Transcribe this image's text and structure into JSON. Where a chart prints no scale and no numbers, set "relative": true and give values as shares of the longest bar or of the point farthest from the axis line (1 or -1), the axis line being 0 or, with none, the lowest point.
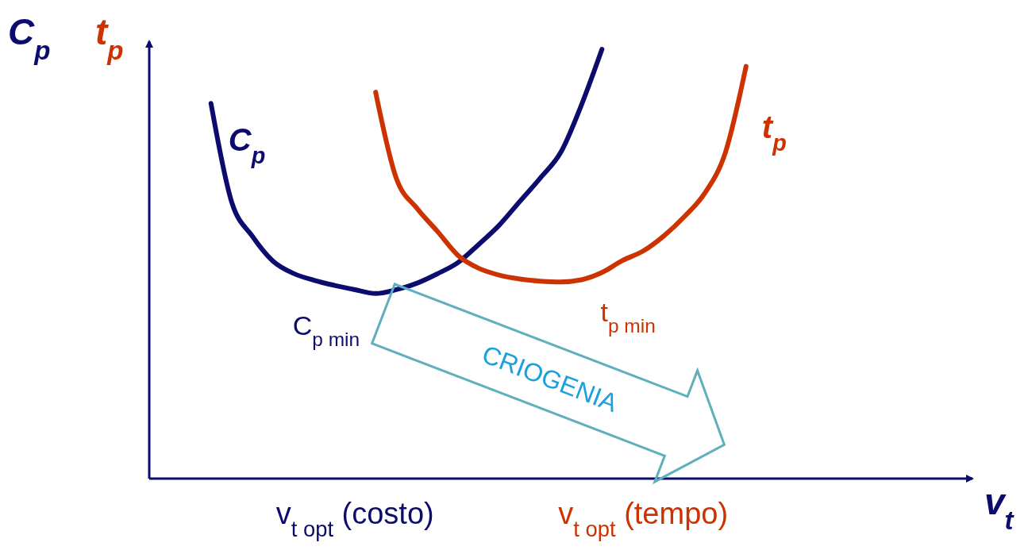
{
  "chart_data": {
    "type": "line",
    "relative": true,
    "xlabel": "v$_{t}$",
    "ylabel": "C$_{p}$",
    "y2label": "t$_{p}$",
    "categories": [
      null,
      null,
      null,
      null,
      null,
      null,
      null,
      null,
      null,
      null,
      "v$_{t opt}$ (costo)",
      null,
      null,
      null,
      null,
      null,
      null,
      null,
      null,
      null,
      null,
      null,
      null,
      null,
      "v$_{t opt}$ (tempo)",
      null,
      null,
      null,
      null,
      null,
      null,
      null,
      null,
      null,
      null,
      null,
      null,
      null,
      null,
      null,
      null
    ],
    "line_style": "solid",
    "annotations": [
      "C$_{p min}$",
      "t$_{p min}$",
      "CRIOGENIA"
    ],
    "series": [
      {
        "name": "C$_{p}$",
        "color": "#0c0c6e",
        "values": [
          null,
          null,
          null,
          0.874,
          0.645,
          0.565,
          0.507,
          0.478,
          0.462,
          0.45,
          0.44,
          0.431,
          0.44,
          0.455,
          0.477,
          0.503,
          0.545,
          0.59,
          0.645,
          0.7,
          0.76,
          0.87,
          1,
          null,
          null,
          null,
          null,
          null,
          null,
          null,
          null,
          null,
          null,
          null,
          null,
          null,
          null,
          null,
          null,
          null,
          null
        ]
      },
      {
        "name": "t$_{p}$",
        "color": "#cc3300",
        "values": [
          null,
          null,
          null,
          null,
          null,
          null,
          null,
          null,
          null,
          null,
          null,
          0.9,
          0.7,
          0.63,
          0.576,
          0.52,
          0.49,
          0.474,
          0.465,
          0.46,
          0.458,
          0.463,
          0.48,
          0.508,
          0.53,
          0.565,
          0.61,
          0.665,
          0.76,
          0.96,
          null,
          null,
          null,
          null,
          null,
          null,
          null,
          null,
          null,
          null,
          null
        ]
      }
    ]
  }
}
